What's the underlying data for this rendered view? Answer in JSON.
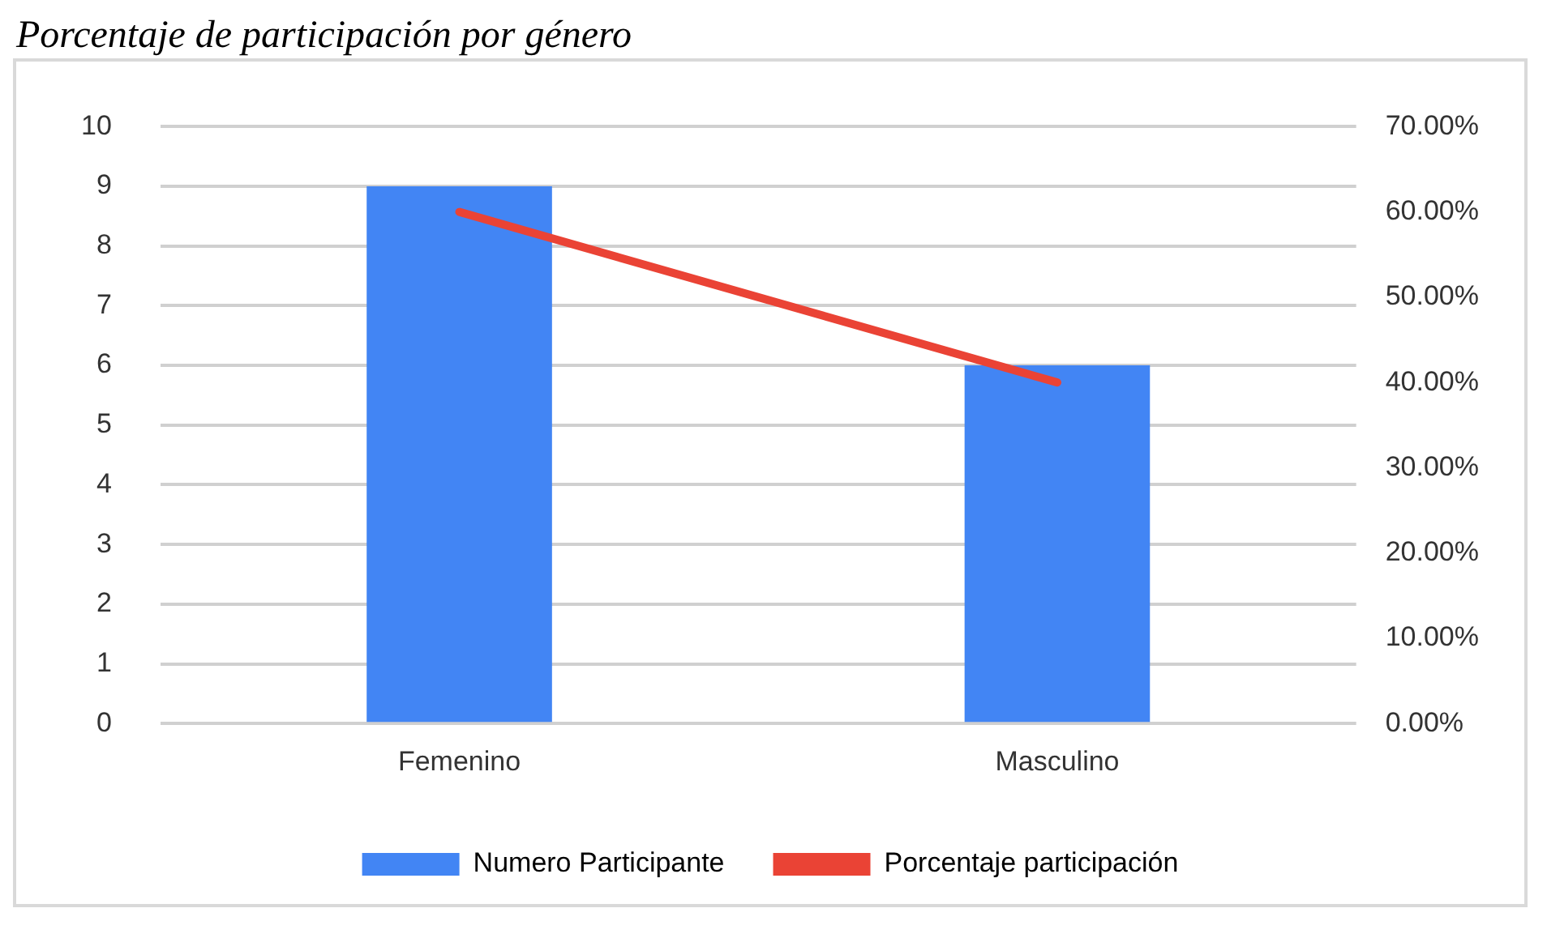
{
  "chart_data": {
    "type": "bar",
    "title": "Porcentaje de participación por género",
    "categories": [
      "Femenino",
      "Masculino"
    ],
    "series": [
      {
        "name": "Numero Participante",
        "color": "#4285f4",
        "values": [
          9,
          6
        ]
      },
      {
        "name": "Porcentaje participación",
        "type": "line",
        "axis": "y2",
        "color": "#ea4335",
        "values": [
          60,
          40
        ]
      }
    ],
    "ylim": [
      0,
      10
    ],
    "yticks": [
      0,
      1,
      2,
      3,
      4,
      5,
      6,
      7,
      8,
      9,
      10
    ],
    "y2lim": [
      0,
      70
    ],
    "y2ticks": [
      {
        "value": 0,
        "label": "0.00%"
      },
      {
        "value": 10,
        "label": "10.00%"
      },
      {
        "value": 20,
        "label": "20.00%"
      },
      {
        "value": 30,
        "label": "30.00%"
      },
      {
        "value": 40,
        "label": "40.00%"
      },
      {
        "value": 50,
        "label": "50.00%"
      },
      {
        "value": 60,
        "label": "60.00%"
      },
      {
        "value": 70,
        "label": "70.00%"
      }
    ],
    "grid": "y",
    "legend": "bottom",
    "marker": "none",
    "line_style": "solid"
  }
}
